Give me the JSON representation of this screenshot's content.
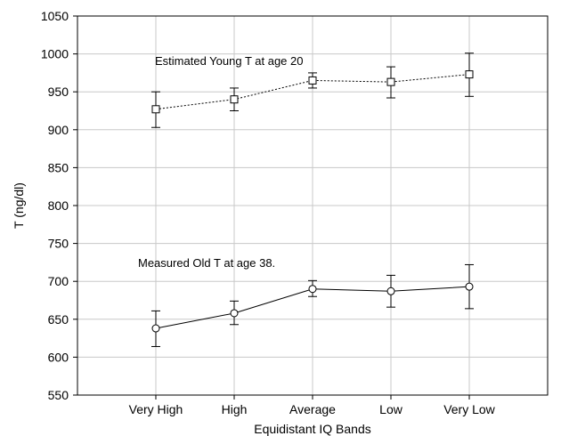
{
  "chart_data": {
    "type": "line",
    "xlabel": "Equidistant IQ Bands",
    "ylabel": "T (ng/dl)",
    "categories": [
      "Very High",
      "High",
      "Average",
      "Low",
      "Very Low"
    ],
    "ylim": [
      550,
      1050
    ],
    "yticks": [
      550,
      600,
      650,
      700,
      750,
      800,
      850,
      900,
      950,
      1000,
      1050
    ],
    "grid": true,
    "series": [
      {
        "name": "Estimated Young T at age 20",
        "line_style": "dotted",
        "marker": "square",
        "values": [
          927,
          940,
          965,
          963,
          973
        ],
        "err_low": [
          903,
          925,
          955,
          942,
          944
        ],
        "err_high": [
          950,
          955,
          975,
          983,
          1001
        ]
      },
      {
        "name": "Measured Old T at age 38.",
        "line_style": "solid",
        "marker": "circle",
        "values": [
          638,
          658,
          690,
          687,
          693
        ],
        "err_low": [
          614,
          643,
          680,
          666,
          664
        ],
        "err_high": [
          661,
          674,
          701,
          708,
          722
        ]
      }
    ]
  }
}
